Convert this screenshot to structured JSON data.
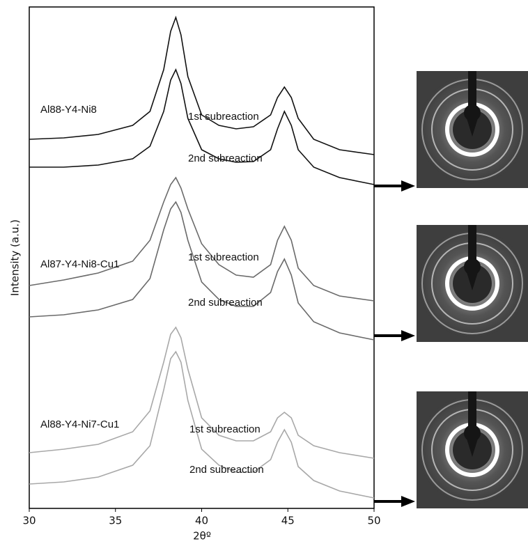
{
  "chart_data": {
    "type": "line",
    "x_label": "2θº",
    "y_label": "Intensity (a.u.)",
    "xlim": [
      30,
      50
    ],
    "xticks": [
      30,
      35,
      40,
      45,
      50
    ],
    "ylim": [
      0,
      720
    ],
    "x": [
      30,
      32,
      34,
      36,
      37,
      37.8,
      38.2,
      38.5,
      38.8,
      39.2,
      40,
      41,
      42,
      43,
      44,
      44.4,
      44.8,
      45.2,
      45.6,
      46.5,
      48,
      50
    ],
    "samples": [
      "Al88-Y4-Ni8",
      "Al87-Y4-Ni8-Cu1",
      "Al88-Y4-Ni7-Cu1"
    ],
    "series": [
      {
        "name": "1st subreaction",
        "color": "#111111",
        "values": [
          530,
          532,
          537,
          550,
          570,
          630,
          685,
          705,
          680,
          620,
          565,
          550,
          545,
          548,
          565,
          590,
          605,
          590,
          560,
          530,
          515,
          508
        ]
      },
      {
        "name": "2nd subreaction",
        "color": "#111111",
        "values": [
          490,
          490,
          493,
          502,
          520,
          570,
          615,
          630,
          610,
          560,
          515,
          502,
          497,
          498,
          515,
          545,
          570,
          550,
          515,
          490,
          475,
          465
        ]
      },
      {
        "name": "1st subreaction",
        "color": "#6a6a6a",
        "values": [
          320,
          328,
          338,
          355,
          385,
          440,
          465,
          475,
          460,
          430,
          380,
          350,
          335,
          332,
          350,
          385,
          405,
          385,
          345,
          320,
          305,
          298
        ]
      },
      {
        "name": "2nd subreaction",
        "color": "#6a6a6a",
        "values": [
          275,
          278,
          285,
          300,
          330,
          400,
          430,
          440,
          425,
          385,
          325,
          300,
          290,
          290,
          310,
          340,
          358,
          335,
          295,
          268,
          252,
          242
        ]
      },
      {
        "name": "1st subreaction",
        "color": "#a8a8a8",
        "values": [
          80,
          85,
          92,
          110,
          140,
          210,
          250,
          260,
          245,
          200,
          130,
          105,
          97,
          97,
          110,
          130,
          138,
          130,
          105,
          90,
          80,
          72
        ]
      },
      {
        "name": "2nd subreaction",
        "color": "#a8a8a8",
        "values": [
          35,
          38,
          45,
          62,
          90,
          170,
          215,
          225,
          210,
          155,
          85,
          62,
          52,
          52,
          70,
          95,
          113,
          95,
          60,
          40,
          25,
          15
        ]
      }
    ]
  }
}
